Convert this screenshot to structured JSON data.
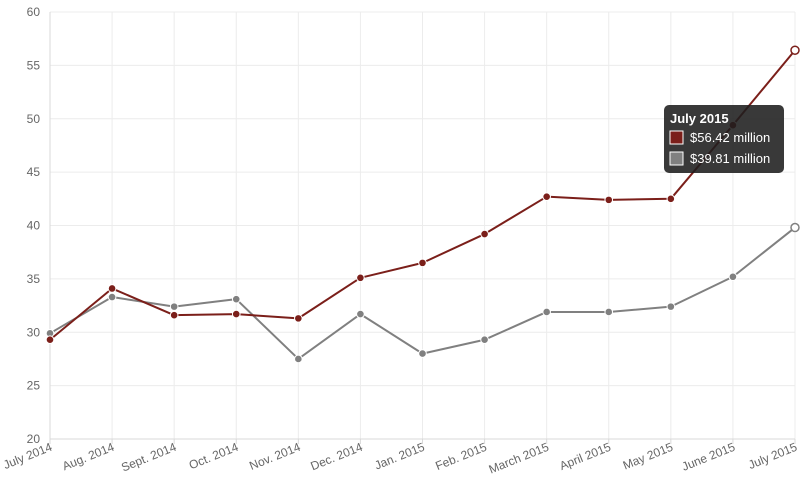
{
  "chart_data": {
    "type": "line",
    "categories": [
      "July 2014",
      "Aug. 2014",
      "Sept. 2014",
      "Oct. 2014",
      "Nov. 2014",
      "Dec. 2014",
      "Jan. 2015",
      "Feb. 2015",
      "March 2015",
      "April 2015",
      "May 2015",
      "June 2015",
      "July 2015"
    ],
    "series": [
      {
        "color": "#7b1f1a",
        "values": [
          29.3,
          34.1,
          31.6,
          31.7,
          31.3,
          35.1,
          36.5,
          39.2,
          42.7,
          42.4,
          42.5,
          49.4,
          56.42
        ]
      },
      {
        "color": "#808080",
        "values": [
          29.9,
          33.3,
          32.4,
          33.1,
          27.5,
          31.7,
          28.0,
          29.3,
          31.9,
          31.9,
          32.4,
          35.2,
          39.81
        ]
      }
    ],
    "ylim": [
      20,
      60
    ],
    "yticks": [
      20,
      25,
      30,
      35,
      40,
      45,
      50,
      55,
      60
    ],
    "grid": true,
    "tooltip": {
      "title": "July 2015",
      "items": [
        {
          "color": "#7b1f1a",
          "text": "$56.42 million"
        },
        {
          "color": "#808080",
          "text": "$39.81 million"
        }
      ]
    }
  }
}
